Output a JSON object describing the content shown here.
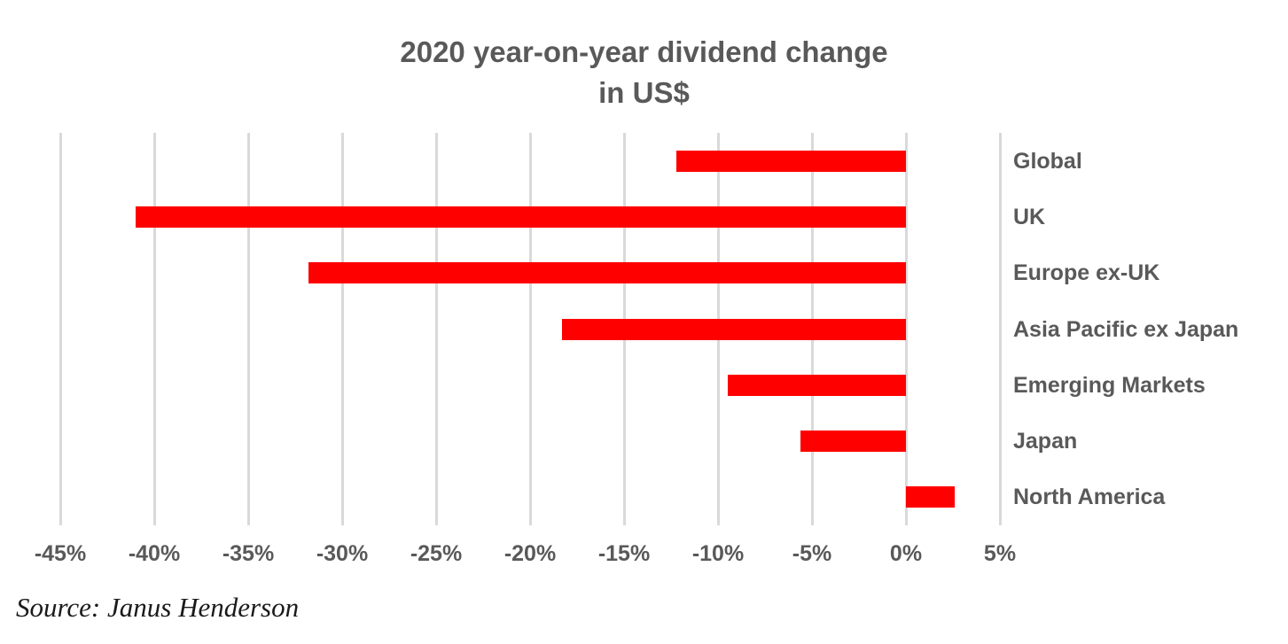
{
  "title": {
    "line1": "2020 year-on-year dividend change",
    "line2": "in US$"
  },
  "source": "Source: Janus Henderson",
  "colors": {
    "bar": "#ff0000",
    "gridline": "#d9d9d9",
    "label_text": "#595959",
    "source_text": "#1a1a1a"
  },
  "chart_data": {
    "type": "bar",
    "orientation": "horizontal",
    "title": "2020 year-on-year dividend change in US$",
    "categories": [
      "Global",
      "UK",
      "Europe ex-UK",
      "Asia Pacific ex Japan",
      "Emerging Markets",
      "Japan",
      "North America"
    ],
    "values": [
      -12.2,
      -41.0,
      -31.8,
      -18.3,
      -9.5,
      -5.6,
      2.6
    ],
    "unit": "%",
    "xlim": [
      -45,
      5
    ],
    "x_tick_values": [
      -45,
      -40,
      -35,
      -30,
      -25,
      -20,
      -15,
      -10,
      -5,
      0,
      5
    ],
    "x_tick_labels": [
      "-45%",
      "-40%",
      "-35%",
      "-30%",
      "-25%",
      "-20%",
      "-15%",
      "-10%",
      "-5%",
      "0%",
      "5%"
    ],
    "ylabel": "",
    "xlabel": "",
    "grid": "vertical",
    "legend": false,
    "bar_color": "#ff0000",
    "source": "Source: Janus Henderson"
  }
}
